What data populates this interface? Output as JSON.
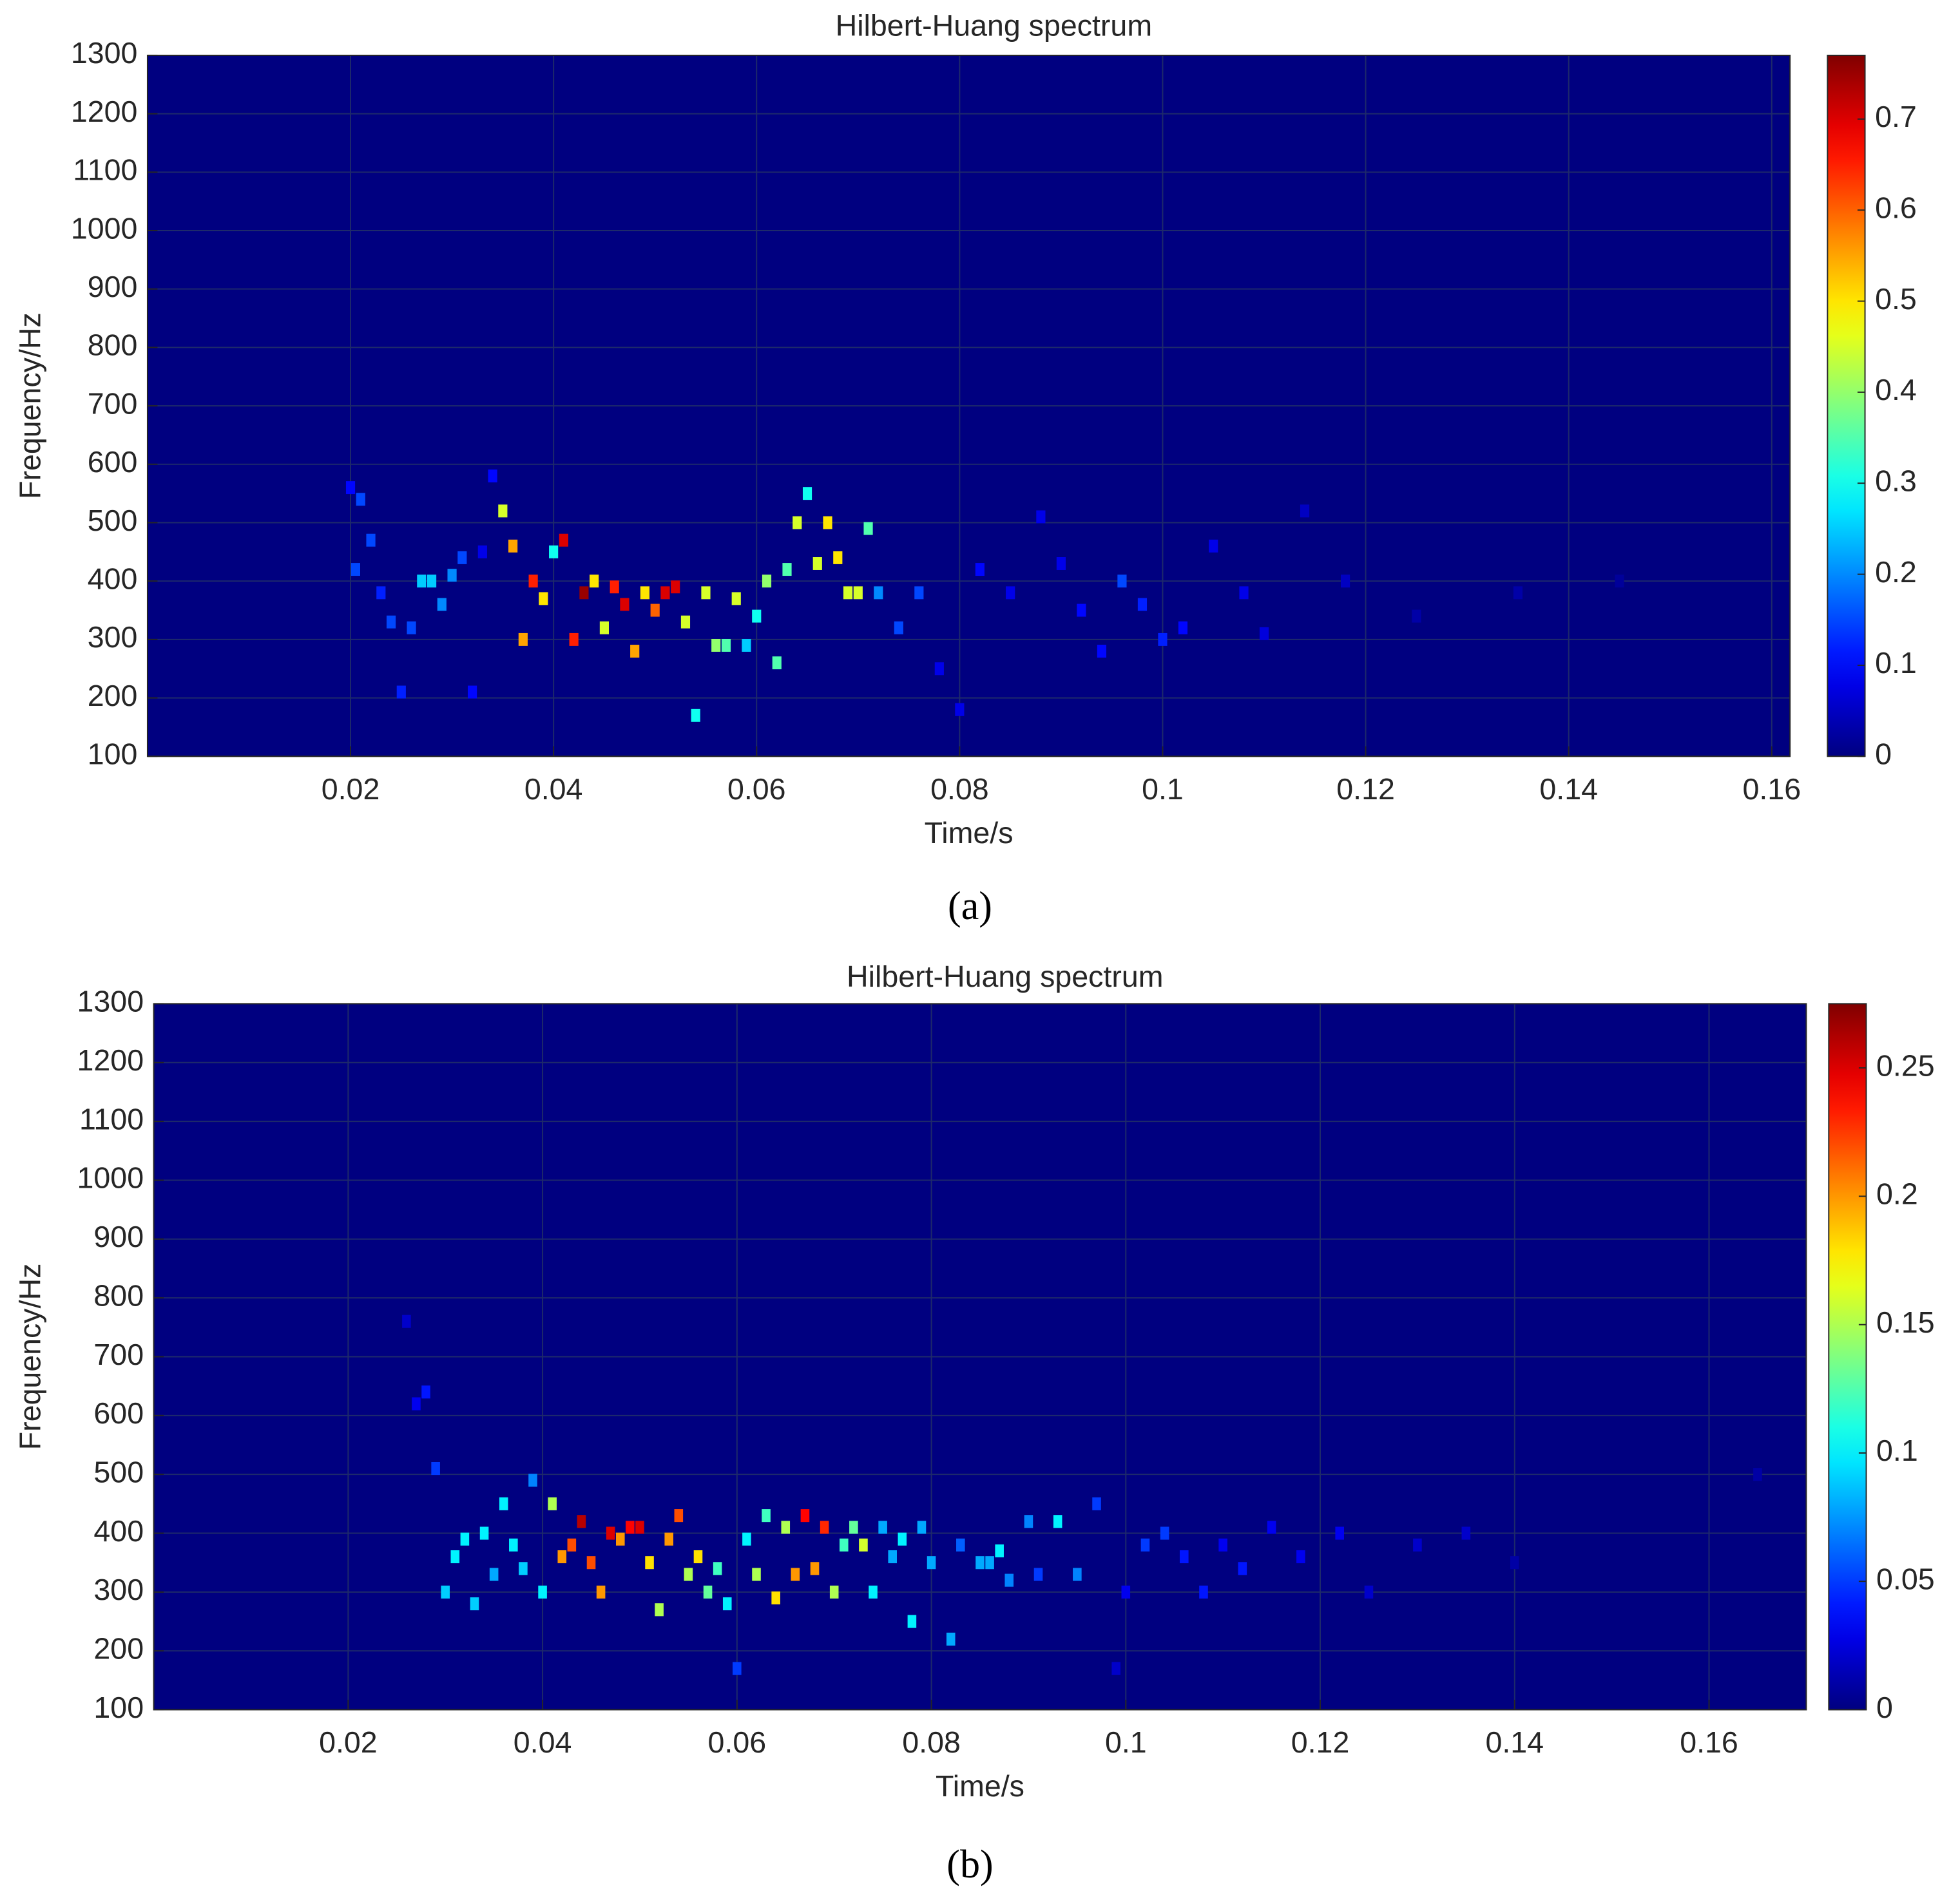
{
  "chart_data": [
    {
      "type": "heatmap",
      "title": "Hilbert-Huang spectrum",
      "x_label": "Time/s",
      "y_label": "Frequency/Hz",
      "panel_label": "(a)",
      "colormap": "jet",
      "grid": true,
      "xlim": [
        0,
        0.1618
      ],
      "xticks": [
        0.02,
        0.04,
        0.06,
        0.08,
        0.1,
        0.12,
        0.14,
        0.16
      ],
      "ylim": [
        100,
        1300
      ],
      "yticks": [
        100,
        200,
        300,
        400,
        500,
        600,
        700,
        800,
        900,
        1000,
        1100,
        1200,
        1300
      ],
      "clim": [
        0,
        0.77
      ],
      "cticks": [
        0,
        0.1,
        0.2,
        0.3,
        0.4,
        0.5,
        0.6,
        0.7
      ],
      "x": [
        0.02,
        0.0205,
        0.021,
        0.022,
        0.023,
        0.024,
        0.025,
        0.026,
        0.027,
        0.028,
        0.029,
        0.03,
        0.031,
        0.032,
        0.033,
        0.034,
        0.035,
        0.036,
        0.037,
        0.038,
        0.039,
        0.04,
        0.041,
        0.042,
        0.043,
        0.044,
        0.045,
        0.046,
        0.047,
        0.048,
        0.049,
        0.05,
        0.051,
        0.052,
        0.053,
        0.054,
        0.055,
        0.056,
        0.057,
        0.058,
        0.059,
        0.06,
        0.061,
        0.062,
        0.063,
        0.064,
        0.065,
        0.066,
        0.067,
        0.068,
        0.069,
        0.07,
        0.071,
        0.072,
        0.074,
        0.076,
        0.078,
        0.08,
        0.082,
        0.085,
        0.088,
        0.09,
        0.092,
        0.094,
        0.096,
        0.098,
        0.1,
        0.102,
        0.105,
        0.108,
        0.11,
        0.114,
        0.118,
        0.125,
        0.135,
        0.145
      ],
      "y": [
        560,
        420,
        540,
        470,
        380,
        330,
        210,
        320,
        400,
        400,
        360,
        410,
        440,
        210,
        450,
        580,
        520,
        460,
        300,
        400,
        370,
        450,
        470,
        300,
        380,
        400,
        320,
        390,
        360,
        280,
        380,
        350,
        380,
        390,
        330,
        170,
        380,
        290,
        290,
        370,
        290,
        340,
        400,
        260,
        420,
        500,
        550,
        430,
        500,
        440,
        380,
        380,
        490,
        380,
        320,
        380,
        250,
        180,
        420,
        380,
        510,
        430,
        350,
        280,
        400,
        360,
        300,
        320,
        460,
        380,
        310,
        520,
        400,
        340,
        380,
        400
      ],
      "values": [
        0.1,
        0.15,
        0.15,
        0.15,
        0.12,
        0.15,
        0.12,
        0.15,
        0.25,
        0.25,
        0.2,
        0.2,
        0.15,
        0.1,
        0.08,
        0.1,
        0.45,
        0.55,
        0.55,
        0.65,
        0.5,
        0.3,
        0.7,
        0.65,
        0.75,
        0.5,
        0.45,
        0.65,
        0.7,
        0.55,
        0.5,
        0.6,
        0.7,
        0.7,
        0.45,
        0.3,
        0.45,
        0.4,
        0.35,
        0.45,
        0.25,
        0.3,
        0.4,
        0.35,
        0.35,
        0.45,
        0.3,
        0.45,
        0.5,
        0.5,
        0.45,
        0.45,
        0.35,
        0.2,
        0.15,
        0.15,
        0.08,
        0.08,
        0.1,
        0.08,
        0.08,
        0.08,
        0.1,
        0.1,
        0.15,
        0.12,
        0.12,
        0.1,
        0.08,
        0.08,
        0.07,
        0.05,
        0.05,
        0.03,
        0.03,
        0.02
      ]
    },
    {
      "type": "heatmap",
      "title": "Hilbert-Huang spectrum",
      "x_label": "Time/s",
      "y_label": "Frequency/Hz",
      "panel_label": "(b)",
      "colormap": "jet",
      "grid": true,
      "xlim": [
        0,
        0.17
      ],
      "xticks": [
        0.02,
        0.04,
        0.06,
        0.08,
        0.1,
        0.12,
        0.14,
        0.16
      ],
      "ylim": [
        100,
        1300
      ],
      "yticks": [
        100,
        200,
        300,
        400,
        500,
        600,
        700,
        800,
        900,
        1000,
        1100,
        1200,
        1300
      ],
      "clim": [
        0,
        0.275
      ],
      "cticks": [
        0,
        0.05,
        0.1,
        0.15,
        0.2,
        0.25
      ],
      "x": [
        0.026,
        0.027,
        0.028,
        0.029,
        0.03,
        0.031,
        0.032,
        0.033,
        0.034,
        0.035,
        0.036,
        0.037,
        0.038,
        0.039,
        0.04,
        0.041,
        0.042,
        0.043,
        0.044,
        0.045,
        0.046,
        0.047,
        0.048,
        0.049,
        0.05,
        0.051,
        0.052,
        0.053,
        0.054,
        0.055,
        0.056,
        0.057,
        0.058,
        0.059,
        0.06,
        0.061,
        0.062,
        0.063,
        0.064,
        0.065,
        0.066,
        0.067,
        0.068,
        0.069,
        0.07,
        0.071,
        0.072,
        0.073,
        0.074,
        0.075,
        0.076,
        0.077,
        0.078,
        0.079,
        0.08,
        0.082,
        0.083,
        0.085,
        0.086,
        0.087,
        0.088,
        0.09,
        0.091,
        0.093,
        0.095,
        0.097,
        0.099,
        0.1,
        0.102,
        0.104,
        0.106,
        0.108,
        0.11,
        0.112,
        0.115,
        0.118,
        0.122,
        0.125,
        0.13,
        0.135,
        0.14,
        0.165
      ],
      "y": [
        760,
        620,
        640,
        510,
        300,
        360,
        390,
        280,
        400,
        330,
        450,
        380,
        340,
        490,
        300,
        450,
        360,
        380,
        420,
        350,
        300,
        400,
        390,
        410,
        410,
        350,
        270,
        390,
        430,
        330,
        360,
        300,
        340,
        280,
        170,
        390,
        330,
        430,
        290,
        410,
        330,
        430,
        340,
        410,
        300,
        380,
        410,
        380,
        300,
        410,
        360,
        390,
        250,
        410,
        350,
        220,
        380,
        350,
        350,
        370,
        320,
        420,
        330,
        420,
        330,
        450,
        170,
        300,
        380,
        400,
        360,
        300,
        380,
        340,
        410,
        360,
        400,
        300,
        380,
        400,
        350,
        500
      ],
      "values": [
        0.02,
        0.03,
        0.04,
        0.05,
        0.09,
        0.1,
        0.1,
        0.09,
        0.1,
        0.08,
        0.1,
        0.1,
        0.09,
        0.07,
        0.1,
        0.15,
        0.2,
        0.22,
        0.26,
        0.22,
        0.2,
        0.25,
        0.2,
        0.24,
        0.25,
        0.18,
        0.15,
        0.2,
        0.22,
        0.15,
        0.18,
        0.13,
        0.12,
        0.1,
        0.05,
        0.1,
        0.15,
        0.12,
        0.18,
        0.15,
        0.2,
        0.24,
        0.2,
        0.23,
        0.15,
        0.12,
        0.13,
        0.16,
        0.1,
        0.08,
        0.08,
        0.1,
        0.1,
        0.08,
        0.08,
        0.08,
        0.06,
        0.08,
        0.08,
        0.1,
        0.07,
        0.07,
        0.05,
        0.1,
        0.07,
        0.05,
        0.02,
        0.03,
        0.05,
        0.05,
        0.04,
        0.04,
        0.03,
        0.04,
        0.03,
        0.03,
        0.03,
        0.02,
        0.02,
        0.02,
        0.01,
        0.01
      ]
    }
  ]
}
